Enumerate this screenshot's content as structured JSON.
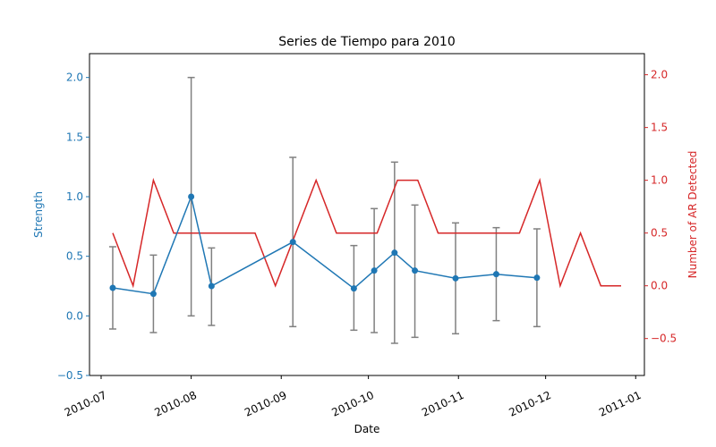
{
  "chart_data": {
    "type": "line",
    "title": "Series de Tiempo para 2010",
    "xlabel": "Date",
    "ylabel": "Strength",
    "y2label": "Number of AR Detected",
    "x_type": "date",
    "xlim": [
      "2010-06-27",
      "2011-01-04"
    ],
    "ylim": [
      -0.5,
      2.2
    ],
    "y2lim": [
      -0.85,
      2.2
    ],
    "x_ticks": [
      "2010-07-01",
      "2010-08-01",
      "2010-09-01",
      "2010-10-01",
      "2010-11-01",
      "2010-12-01",
      "2011-01-01"
    ],
    "x_tick_labels": [
      "2010-07",
      "2010-08",
      "2010-09",
      "2010-10",
      "2010-11",
      "2010-12",
      "2011-01"
    ],
    "y_ticks": [
      -0.5,
      0.0,
      0.5,
      1.0,
      1.5,
      2.0
    ],
    "y_tick_labels": [
      "−0.5",
      "0.0",
      "0.5",
      "1.0",
      "1.5",
      "2.0"
    ],
    "y2_ticks": [
      -0.5,
      0.0,
      0.5,
      1.0,
      1.5,
      2.0
    ],
    "y2_tick_labels": [
      "−0.5",
      "0.0",
      "0.5",
      "1.0",
      "1.5",
      "2.0"
    ],
    "grid": false,
    "colors": {
      "strength": "#1f77b4",
      "ar": "#d62728",
      "errorbar": "#808080"
    },
    "series": [
      {
        "axis": "left",
        "style": "line-marker-errorbar",
        "x": [
          "2010-07-05",
          "2010-07-19",
          "2010-08-01",
          "2010-08-08",
          "2010-09-05",
          "2010-09-26",
          "2010-10-03",
          "2010-10-10",
          "2010-10-17",
          "2010-10-31",
          "2010-11-14",
          "2010-11-28"
        ],
        "values": [
          0.235,
          0.185,
          1.0,
          0.25,
          0.62,
          0.23,
          0.38,
          0.53,
          0.38,
          0.315,
          0.35,
          0.32
        ],
        "err_low": [
          -0.11,
          -0.14,
          0.0,
          -0.08,
          -0.09,
          -0.12,
          -0.14,
          -0.23,
          -0.18,
          -0.15,
          -0.04,
          -0.09
        ],
        "err_high": [
          0.58,
          0.51,
          2.0,
          0.57,
          1.33,
          0.59,
          0.9,
          1.29,
          0.93,
          0.78,
          0.74,
          0.73
        ]
      },
      {
        "axis": "right",
        "style": "line",
        "x": [
          "2010-07-05",
          "2010-07-12",
          "2010-07-19",
          "2010-07-26",
          "2010-08-02",
          "2010-08-09",
          "2010-08-16",
          "2010-08-23",
          "2010-08-30",
          "2010-09-06",
          "2010-09-13",
          "2010-09-20",
          "2010-09-27",
          "2010-10-04",
          "2010-10-11",
          "2010-10-18",
          "2010-10-25",
          "2010-11-01",
          "2010-11-08",
          "2010-11-15",
          "2010-11-22",
          "2010-11-29",
          "2010-12-06",
          "2010-12-13",
          "2010-12-20",
          "2010-12-27"
        ],
        "values": [
          0.5,
          0,
          1,
          0.5,
          0.5,
          0.5,
          0.5,
          0.5,
          0,
          0.5,
          1,
          0.5,
          0.5,
          0.5,
          1,
          1,
          0.5,
          0.5,
          0.5,
          0.5,
          0.5,
          1,
          0,
          0.5,
          0,
          0
        ]
      }
    ]
  }
}
